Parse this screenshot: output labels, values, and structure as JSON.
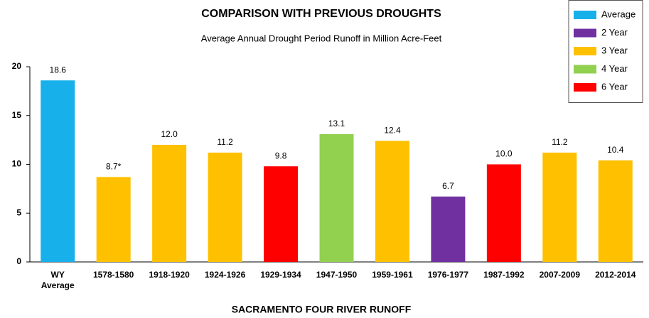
{
  "chart_data": {
    "type": "bar",
    "title": "COMPARISON WITH PREVIOUS DROUGHTS",
    "subtitle": "Average Annual Drought Period Runoff in Million Acre-Feet",
    "x_label": "SACRAMENTO FOUR RIVER RUNOFF",
    "categories": [
      "WY Average",
      "1578-1580",
      "1918-1920",
      "1924-1926",
      "1929-1934",
      "1947-1950",
      "1959-1961",
      "1976-1977",
      "1987-1992",
      "2007-2009",
      "2012-2014"
    ],
    "values": [
      18.6,
      8.7,
      12.0,
      11.2,
      9.8,
      13.1,
      12.4,
      6.7,
      10.0,
      11.2,
      10.4
    ],
    "value_labels": [
      "18.6",
      "8.7*",
      "12.0",
      "11.2",
      "9.8",
      "13.1",
      "12.4",
      "6.7",
      "10.0",
      "11.2",
      "10.4"
    ],
    "colors": [
      "#17b0ea",
      "#ffc000",
      "#ffc000",
      "#ffc000",
      "#ff0000",
      "#92d050",
      "#ffc000",
      "#7030a0",
      "#ff0000",
      "#ffc000",
      "#ffc000"
    ],
    "legend": [
      {
        "name": "Average",
        "color": "#17b0ea"
      },
      {
        "name": "2 Year",
        "color": "#7030a0"
      },
      {
        "name": "3 Year",
        "color": "#ffc000"
      },
      {
        "name": "4 Year",
        "color": "#92d050"
      },
      {
        "name": "6 Year",
        "color": "#ff0000"
      }
    ],
    "legend_position": "upper right",
    "ylim": [
      0,
      20
    ],
    "yticks": [
      0,
      5,
      10,
      15,
      20
    ],
    "grid": false
  }
}
